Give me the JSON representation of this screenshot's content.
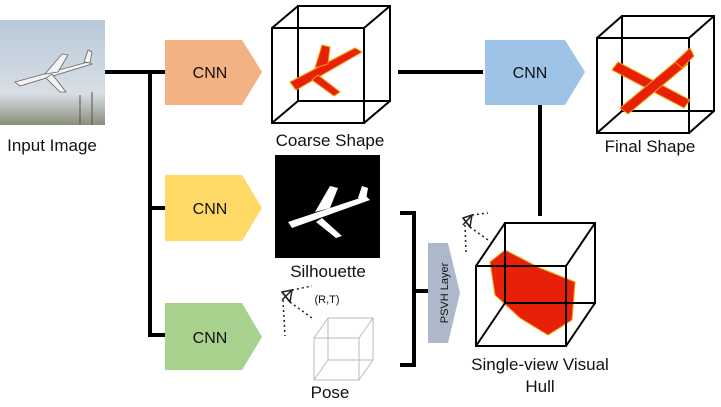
{
  "input": {
    "label": "Input Image"
  },
  "cnn_blocks": [
    {
      "label": "CNN",
      "color": "#f4b183"
    },
    {
      "label": "CNN",
      "color": "#ffd966"
    },
    {
      "label": "CNN",
      "color": "#a9d18e"
    },
    {
      "label": "CNN",
      "color": "#9dc3e6"
    }
  ],
  "coarse_shape": {
    "label": "Coarse Shape"
  },
  "final_shape": {
    "label": "Final Shape"
  },
  "silhouette": {
    "label": "Silhouette"
  },
  "pose": {
    "label": "Pose",
    "camera_label": "(R,T)"
  },
  "psvh_layer": {
    "label": "PSVH Layer",
    "color": "#adb9ca"
  },
  "visual_hull": {
    "label_line1": "Single-view Visual",
    "label_line2": "Hull"
  },
  "colors": {
    "voxel": "#e8200a",
    "voxel_highlight": "#f5a000"
  }
}
